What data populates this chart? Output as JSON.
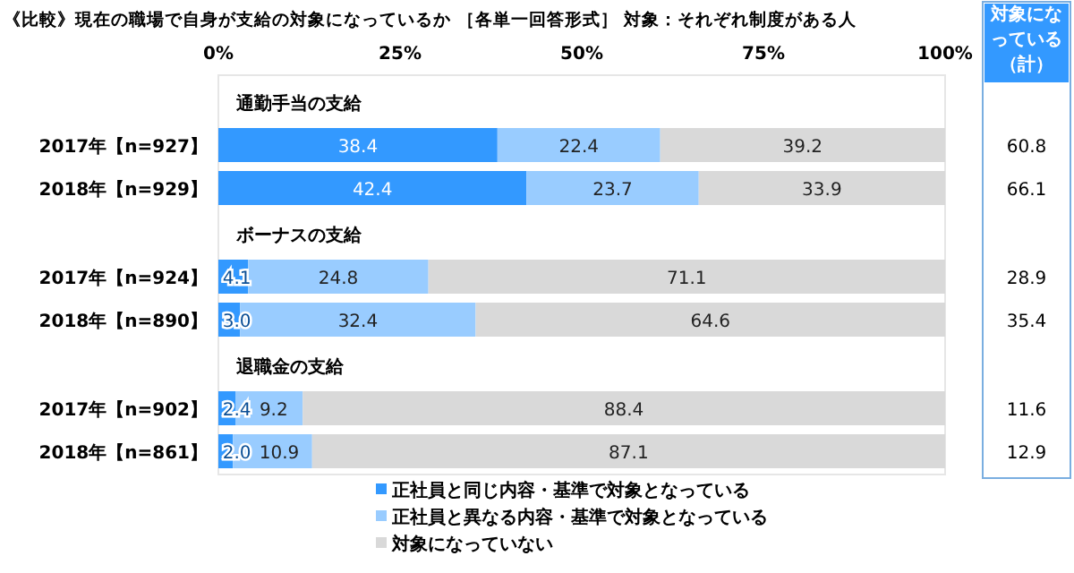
{
  "chart_data": [
    {
      "type": "bar",
      "orientation": "horizontal",
      "stacked": true,
      "title": "《比較》現在の職場で自身が支給の対象になっているか ［各単一回答形式］ 対象：それぞれ制度がある人",
      "categories": [
        "2017年【n=927】",
        "2018年【n=929】",
        "2017年【n=924】",
        "2018年【n=890】",
        "2017年【n=902】",
        "2018年【n=861】"
      ],
      "series": [
        {
          "name": "正社員と同じ内容・基準で対象となっている",
          "color": "#3399ff",
          "values": [
            38.4,
            42.4,
            4.1,
            3.0,
            2.4,
            2.0
          ]
        },
        {
          "name": "正社員と異なる内容・基準で対象となっている",
          "color": "#99ccff",
          "values": [
            22.4,
            23.7,
            24.8,
            32.4,
            9.2,
            10.9
          ]
        },
        {
          "name": "対象になっていない",
          "color": "#d9d9d9",
          "values": [
            39.2,
            33.9,
            71.1,
            64.6,
            88.4,
            87.1
          ]
        }
      ],
      "value_labels": [
        [
          "38.4",
          "42.4",
          "4.1",
          "3.0",
          "2.4",
          "2.0"
        ],
        [
          "22.4",
          "23.7",
          "24.8",
          "32.4",
          "9.2",
          "10.9"
        ],
        [
          "39.2",
          "33.9",
          "71.1",
          "64.6",
          "88.4",
          "87.1"
        ]
      ],
      "annotations": [
        "通勤手当の支給",
        "ボーナスの支給",
        "退職金の支給"
      ],
      "xlim": [
        0,
        100
      ],
      "xticks": [
        {
          "value": 0,
          "label": "0%"
        },
        {
          "value": 25,
          "label": "25%"
        },
        {
          "value": 50,
          "label": "50%"
        },
        {
          "value": 75,
          "label": "75%"
        },
        {
          "value": 100,
          "label": "100%"
        }
      ],
      "legend": "bottom"
    },
    {
      "type": "other",
      "title": "対象になっている（計）",
      "categories": [
        null,
        null,
        null,
        null,
        null,
        null
      ],
      "values": [
        60.8,
        66.1,
        28.9,
        35.4,
        11.6,
        12.9
      ],
      "data_labels": true
    }
  ]
}
